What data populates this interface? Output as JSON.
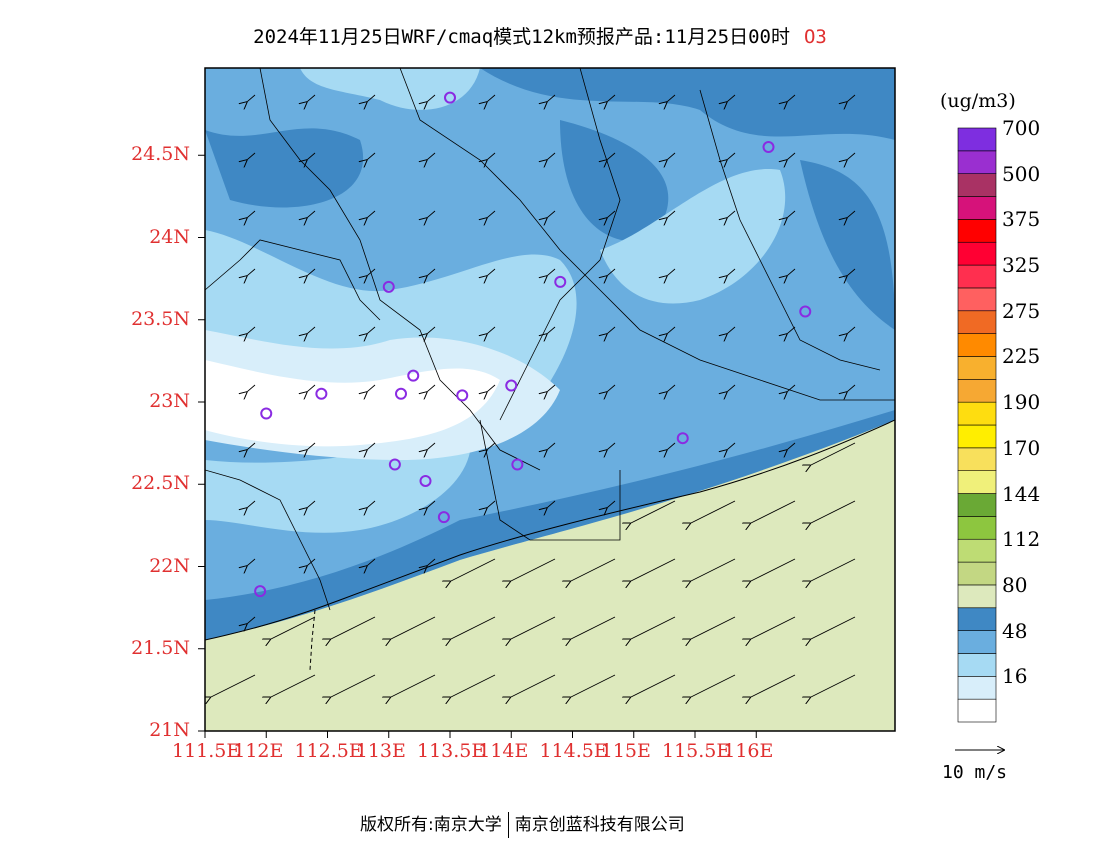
{
  "header": {
    "title": "2024年11月25日WRF/cmaq模式12km预报产品:11月25日00时",
    "species": "O3"
  },
  "map": {
    "lat_labels": [
      "24.5N",
      "24N",
      "23.5N",
      "23N",
      "22.5N",
      "22N",
      "21.5N",
      "21N"
    ],
    "lon_labels": [
      "111.5E",
      "112E",
      "112.5E",
      "113E",
      "113.5E",
      "114E",
      "114.5E",
      "115E",
      "115.5E",
      "116E"
    ],
    "fill_colors": {
      "white": "#ffffff",
      "lightest_blue": "#d8eefa",
      "light_blue": "#a6daf3",
      "mid_blue": "#6aaedf",
      "dark_blue": "#3f88c4",
      "sea_green": "#dde9bd"
    },
    "stations": [
      {
        "lon": 113.5,
        "lat": 24.85
      },
      {
        "lon": 116.1,
        "lat": 24.55
      },
      {
        "lon": 113.0,
        "lat": 23.7
      },
      {
        "lon": 114.4,
        "lat": 23.73
      },
      {
        "lon": 116.4,
        "lat": 23.55
      },
      {
        "lon": 113.2,
        "lat": 23.16
      },
      {
        "lon": 113.1,
        "lat": 23.05
      },
      {
        "lon": 112.45,
        "lat": 23.05
      },
      {
        "lon": 113.6,
        "lat": 23.04
      },
      {
        "lon": 114.0,
        "lat": 23.1
      },
      {
        "lon": 112.0,
        "lat": 22.93
      },
      {
        "lon": 115.4,
        "lat": 22.78
      },
      {
        "lon": 113.05,
        "lat": 22.62
      },
      {
        "lon": 113.3,
        "lat": 22.52
      },
      {
        "lon": 114.05,
        "lat": 22.62
      },
      {
        "lon": 113.45,
        "lat": 22.3
      },
      {
        "lon": 111.95,
        "lat": 21.85
      }
    ]
  },
  "colorbar": {
    "unit": "(ug/m3)",
    "colors": [
      "#ffffff",
      "#d8eefa",
      "#a6daf3",
      "#6aaedf",
      "#3f88c4",
      "#dde9bd",
      "#c3d783",
      "#bedc74",
      "#8dc63f",
      "#6aa935",
      "#f0f07a",
      "#f8e05c",
      "#ffee00",
      "#fedd10",
      "#f6a833",
      "#f8b02e",
      "#ff8a00",
      "#f06a24",
      "#ff6060",
      "#ff2f4f",
      "#ff0033",
      "#ff0000",
      "#d6127a",
      "#a93264",
      "#9a2fd0",
      "#7e2ee0"
    ],
    "labels": [
      "16",
      "48",
      "80",
      "112",
      "144",
      "170",
      "190",
      "225",
      "275",
      "325",
      "375",
      "500",
      "700"
    ]
  },
  "wind_reference": {
    "label": "10 m/s"
  },
  "footer": {
    "copyright": "版权所有:南京大学",
    "company": "南京创蓝科技有限公司"
  }
}
